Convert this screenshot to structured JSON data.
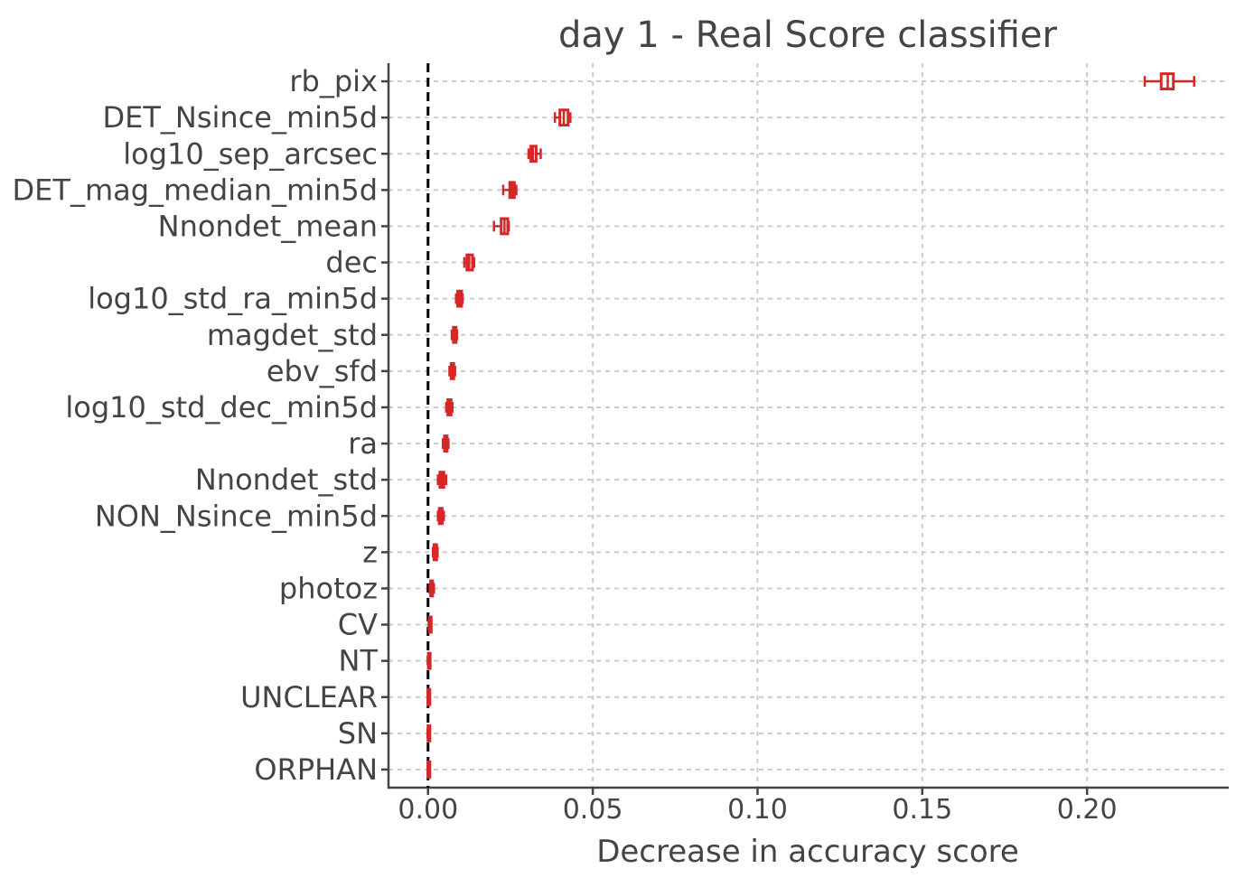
{
  "chart_data": {
    "type": "boxplot",
    "orientation": "horizontal",
    "title": "day 1 - Real Score classifier",
    "xlabel": "Decrease in accuracy score",
    "ylabel": "",
    "xlim": [
      -0.012,
      0.243
    ],
    "xticks": [
      0.0,
      0.05,
      0.1,
      0.15,
      0.2
    ],
    "xtick_labels": [
      "0.00",
      "0.05",
      "0.10",
      "0.15",
      "0.20"
    ],
    "grid": true,
    "reference_line_x": 0.0,
    "box_color": "#d62728",
    "categories": [
      "rb_pix",
      "DET_Nsince_min5d",
      "log10_sep_arcsec",
      "DET_mag_median_min5d",
      "Nnondet_mean",
      "dec",
      "log10_std_ra_min5d",
      "magdet_std",
      "ebv_sfd",
      "log10_std_dec_min5d",
      "ra",
      "Nnondet_std",
      "NON_Nsince_min5d",
      "z",
      "photoz",
      "CV",
      "NT",
      "UNCLEAR",
      "SN",
      "ORPHAN"
    ],
    "boxes": [
      {
        "min": 0.2175,
        "q1": 0.2225,
        "median": 0.2245,
        "q3": 0.2262,
        "max": 0.2325
      },
      {
        "min": 0.0385,
        "q1": 0.04,
        "median": 0.0412,
        "q3": 0.0425,
        "max": 0.0432
      },
      {
        "min": 0.0305,
        "q1": 0.0312,
        "median": 0.0318,
        "q3": 0.0328,
        "max": 0.0342
      },
      {
        "min": 0.0228,
        "q1": 0.0248,
        "median": 0.0255,
        "q3": 0.0262,
        "max": 0.0268
      },
      {
        "min": 0.02,
        "q1": 0.0222,
        "median": 0.0232,
        "q3": 0.0242,
        "max": 0.0245
      },
      {
        "min": 0.011,
        "q1": 0.0118,
        "median": 0.0125,
        "q3": 0.0135,
        "max": 0.014
      },
      {
        "min": 0.0085,
        "q1": 0.009,
        "median": 0.0095,
        "q3": 0.0102,
        "max": 0.0105
      },
      {
        "min": 0.0072,
        "q1": 0.0077,
        "median": 0.008,
        "q3": 0.0085,
        "max": 0.0088
      },
      {
        "min": 0.0065,
        "q1": 0.007,
        "median": 0.0074,
        "q3": 0.0078,
        "max": 0.0082
      },
      {
        "min": 0.0055,
        "q1": 0.006,
        "median": 0.0064,
        "q3": 0.007,
        "max": 0.0074
      },
      {
        "min": 0.0045,
        "q1": 0.005,
        "median": 0.0054,
        "q3": 0.0058,
        "max": 0.0062
      },
      {
        "min": 0.003,
        "q1": 0.0036,
        "median": 0.0042,
        "q3": 0.0048,
        "max": 0.0055
      },
      {
        "min": 0.003,
        "q1": 0.0034,
        "median": 0.0038,
        "q3": 0.0043,
        "max": 0.0048
      },
      {
        "min": 0.0015,
        "q1": 0.0018,
        "median": 0.0022,
        "q3": 0.0026,
        "max": 0.0029
      },
      {
        "min": 0.0005,
        "q1": 0.0008,
        "median": 0.0011,
        "q3": 0.0014,
        "max": 0.0018
      },
      {
        "min": 0.0002,
        "q1": 0.0004,
        "median": 0.0006,
        "q3": 0.0008,
        "max": 0.001
      },
      {
        "min": 0.0,
        "q1": 0.0001,
        "median": 0.0002,
        "q3": 0.0003,
        "max": 0.0005
      },
      {
        "min": -0.0001,
        "q1": 0.0,
        "median": 0.0001,
        "q3": 0.0002,
        "max": 0.0003
      },
      {
        "min": -0.0001,
        "q1": 0.0,
        "median": 5e-05,
        "q3": 0.0001,
        "max": 0.0002
      },
      {
        "min": -0.0001,
        "q1": 0.0,
        "median": 3e-05,
        "q3": 0.0001,
        "max": 0.0001
      }
    ]
  }
}
